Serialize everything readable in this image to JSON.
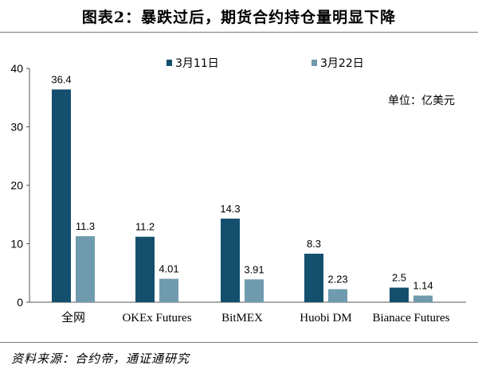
{
  "page": {
    "title": "图表2：暴跌过后，期货合约持仓量明显下降",
    "source": "资料来源：合约帝，通证通研究"
  },
  "colors": {
    "series_1": "#14506e",
    "series_2": "#6f9bae"
  },
  "chart_data": {
    "type": "bar",
    "title": "图表2：暴跌过后，期货合约持仓量明显下降",
    "unit_label": "单位：亿美元",
    "categories": [
      "全网",
      "OKEx Futures",
      "BitMEX",
      "Huobi DM",
      "Bianace Futures"
    ],
    "series": [
      {
        "name": "3月11日",
        "values": [
          36.4,
          11.2,
          14.3,
          8.3,
          2.5
        ],
        "labels": [
          "36.4",
          "11.2",
          "14.3",
          "8.3",
          "2.5"
        ]
      },
      {
        "name": "3月22日",
        "values": [
          11.3,
          4.01,
          3.91,
          2.23,
          1.14
        ],
        "labels": [
          "11.3",
          "4.01",
          "3.91",
          "2.23",
          "1.14"
        ]
      }
    ],
    "ylim": [
      0,
      40
    ],
    "yticks": [
      0,
      10,
      20,
      30,
      40
    ],
    "xlabel": "",
    "ylabel": "",
    "grid": false,
    "legend": "top"
  }
}
